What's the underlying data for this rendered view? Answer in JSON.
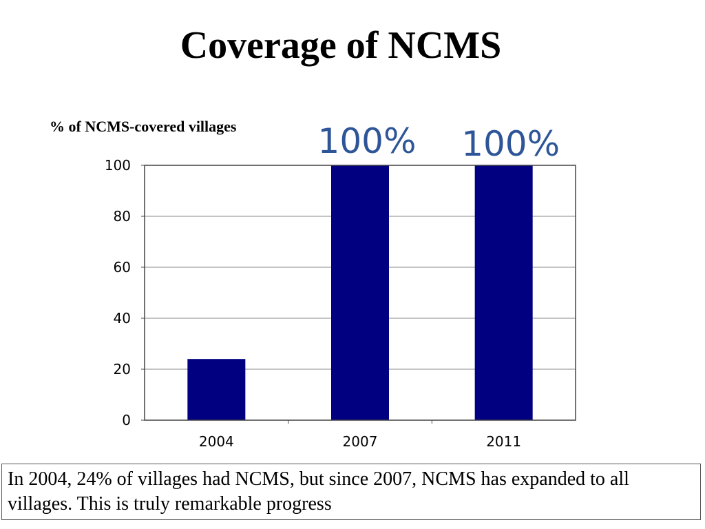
{
  "slide": {
    "title": "Coverage of NCMS",
    "caption": "In 2004, 24% of villages had NCMS, but since 2007, NCMS has expanded to all villages. This is truly remarkable progress"
  },
  "chart_data": {
    "type": "bar",
    "title": "",
    "ylabel": "% of NCMS-covered villages",
    "xlabel": "",
    "categories": [
      "2004",
      "2007",
      "2011"
    ],
    "values": [
      24,
      100,
      100
    ],
    "ylim": [
      0,
      100
    ],
    "yticks": [
      0,
      20,
      40,
      60,
      80,
      100
    ],
    "grid": true,
    "legend": "none",
    "bar_color": "#000080",
    "callouts": [
      {
        "category": "2007",
        "text": "100%"
      },
      {
        "category": "2011",
        "text": "100%"
      }
    ],
    "callout_color": "#2E5597"
  }
}
